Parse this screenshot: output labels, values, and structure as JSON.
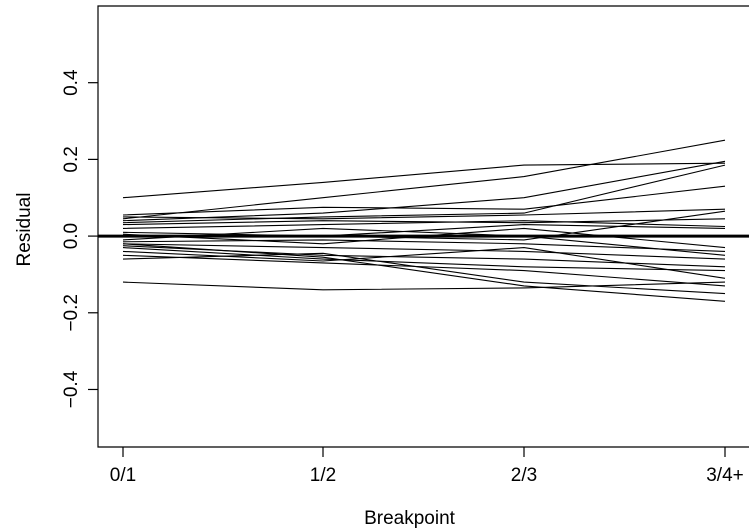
{
  "chart_data": {
    "type": "line",
    "title": "",
    "xlabel": "Breakpoint",
    "ylabel": "Residual",
    "categories": [
      "0/1",
      "1/2",
      "2/3",
      "3/4+"
    ],
    "y_ticks": [
      -0.4,
      -0.2,
      0.0,
      0.2,
      0.4
    ],
    "y_tick_labels": [
      "−0.4",
      "−0.2",
      "0.0",
      "0.2",
      "0.4"
    ],
    "ylim": [
      -0.55,
      0.6
    ],
    "grid": false,
    "legend": false,
    "reference_line": {
      "y": 0.0,
      "style": "bold"
    },
    "series": [
      {
        "values": [
          0.1,
          0.14,
          0.185,
          0.19
        ]
      },
      {
        "values": [
          0.045,
          0.1,
          0.155,
          0.25
        ]
      },
      {
        "values": [
          0.04,
          0.06,
          0.1,
          0.195
        ]
      },
      {
        "values": [
          0.035,
          0.05,
          0.06,
          0.185
        ]
      },
      {
        "values": [
          0.055,
          0.075,
          0.07,
          0.13
        ]
      },
      {
        "values": [
          0.05,
          0.045,
          0.055,
          0.07
        ]
      },
      {
        "values": [
          0.03,
          0.04,
          0.035,
          0.045
        ]
      },
      {
        "values": [
          0.02,
          0.03,
          0.04,
          0.025
        ]
      },
      {
        "values": [
          0.01,
          0.0,
          0.03,
          0.02
        ]
      },
      {
        "values": [
          0.0,
          0.0,
          -0.01,
          0.065
        ]
      },
      {
        "values": [
          0.005,
          -0.02,
          0.02,
          -0.03
        ]
      },
      {
        "values": [
          -0.01,
          0.02,
          0.0,
          -0.05
        ]
      },
      {
        "values": [
          -0.015,
          -0.01,
          -0.02,
          -0.04
        ]
      },
      {
        "values": [
          -0.02,
          -0.03,
          -0.04,
          -0.06
        ]
      },
      {
        "values": [
          -0.025,
          -0.05,
          -0.06,
          -0.08
        ]
      },
      {
        "values": [
          -0.03,
          -0.06,
          -0.08,
          -0.09
        ]
      },
      {
        "values": [
          -0.04,
          -0.065,
          -0.03,
          -0.11
        ]
      },
      {
        "values": [
          -0.05,
          -0.07,
          -0.09,
          -0.13
        ]
      },
      {
        "values": [
          -0.06,
          -0.045,
          -0.12,
          -0.15
        ]
      },
      {
        "values": [
          -0.02,
          -0.055,
          -0.13,
          -0.17
        ]
      },
      {
        "values": [
          -0.12,
          -0.14,
          -0.135,
          -0.12
        ]
      }
    ]
  }
}
